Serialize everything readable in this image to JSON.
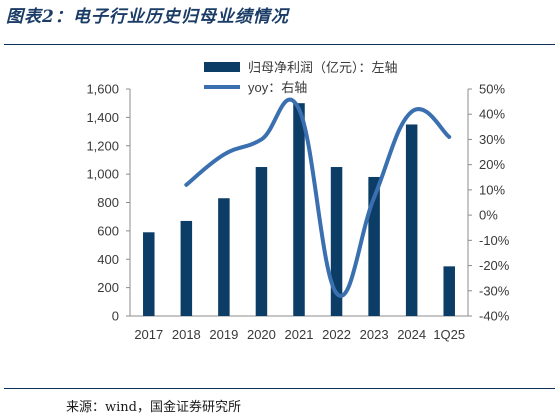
{
  "figure_title": "图表2：电子行业历史归母业绩情况",
  "source_note": "来源：wind，国金证券研究所",
  "colors": {
    "bar": "#0b3d66",
    "line": "#3a6fb0",
    "axis": "#8c8c8c",
    "text": "#3a3a3a",
    "title": "#1a3c66"
  },
  "chart_data": {
    "type": "bar",
    "categories": [
      "2017",
      "2018",
      "2019",
      "2020",
      "2021",
      "2022",
      "2023",
      "2024",
      "1Q25"
    ],
    "series": [
      {
        "name": "归母净利润（亿元）：左轴",
        "type": "bar",
        "axis": "left",
        "values": [
          590,
          670,
          830,
          1050,
          1500,
          1050,
          980,
          1350,
          350
        ]
      },
      {
        "name": "yoy：右轴",
        "type": "line",
        "axis": "right",
        "values": [
          null,
          12,
          24,
          30,
          42,
          -31,
          7,
          41,
          31
        ]
      }
    ],
    "y_left": {
      "min": 0,
      "max": 1600,
      "ticks": [
        0,
        200,
        400,
        600,
        800,
        1000,
        1200,
        1400,
        1600
      ],
      "tick_labels": [
        "0",
        "200",
        "400",
        "600",
        "800",
        "1,000",
        "1,200",
        "1,400",
        "1,600"
      ]
    },
    "y_right": {
      "min": -40,
      "max": 50,
      "ticks": [
        -40,
        -30,
        -20,
        -10,
        0,
        10,
        20,
        30,
        40,
        50
      ],
      "tick_labels": [
        "-40%",
        "-30%",
        "-20%",
        "-10%",
        "0%",
        "10%",
        "20%",
        "30%",
        "40%",
        "50%"
      ]
    },
    "legend_position": "top",
    "grid": false
  }
}
